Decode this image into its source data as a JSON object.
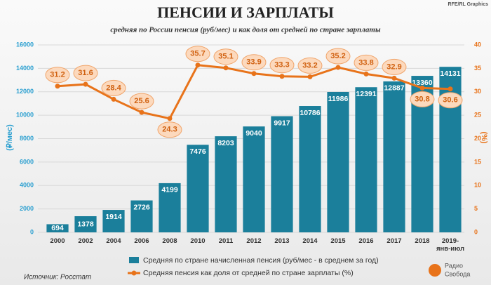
{
  "chart_data": {
    "type": "bar-line",
    "title": "ПЕНСИИ И ЗАРПЛАТЫ",
    "subtitle": "средняя по России пенсия (руб/мес) и как доля от средней по стране зарплаты",
    "credit": "RFE/RL Graphics",
    "source": "Источник: Росстат",
    "logo": [
      "Радио",
      "Свобода"
    ],
    "ylabel": "(₽/мес)",
    "y2label": "(%)",
    "categories": [
      "2000",
      "2002",
      "2004",
      "2006",
      "2008",
      "2010",
      "2011",
      "2012",
      "2013",
      "2014",
      "2015",
      "2016",
      "2017",
      "2018",
      "2019-\nянв-июл"
    ],
    "series": [
      {
        "name": "Средняя по стране начисленная пенсия (руб/мес - в среднем за год)",
        "type": "bar",
        "color": "#1b7f9b",
        "values": [
          694,
          1378,
          1914,
          2726,
          4199,
          7476,
          8203,
          9040,
          9917,
          10786,
          11986,
          12391,
          12887,
          13360,
          14131
        ]
      },
      {
        "name": "Средняя пенсия как доля от средней по стране зарплаты (%)",
        "type": "line",
        "axis": "y2",
        "color": "#e8731a",
        "values": [
          31.2,
          31.6,
          28.4,
          25.6,
          24.3,
          35.7,
          35.1,
          33.9,
          33.3,
          33.2,
          35.2,
          33.8,
          32.9,
          30.8,
          30.6
        ]
      }
    ],
    "ylim": [
      0,
      16000
    ],
    "yticks": [
      0,
      2000,
      4000,
      6000,
      8000,
      10000,
      12000,
      14000,
      16000
    ],
    "y2lim": [
      0,
      40
    ],
    "y2ticks": [
      0,
      5,
      10,
      15,
      20,
      25,
      30,
      35,
      40
    ],
    "grid": true
  }
}
